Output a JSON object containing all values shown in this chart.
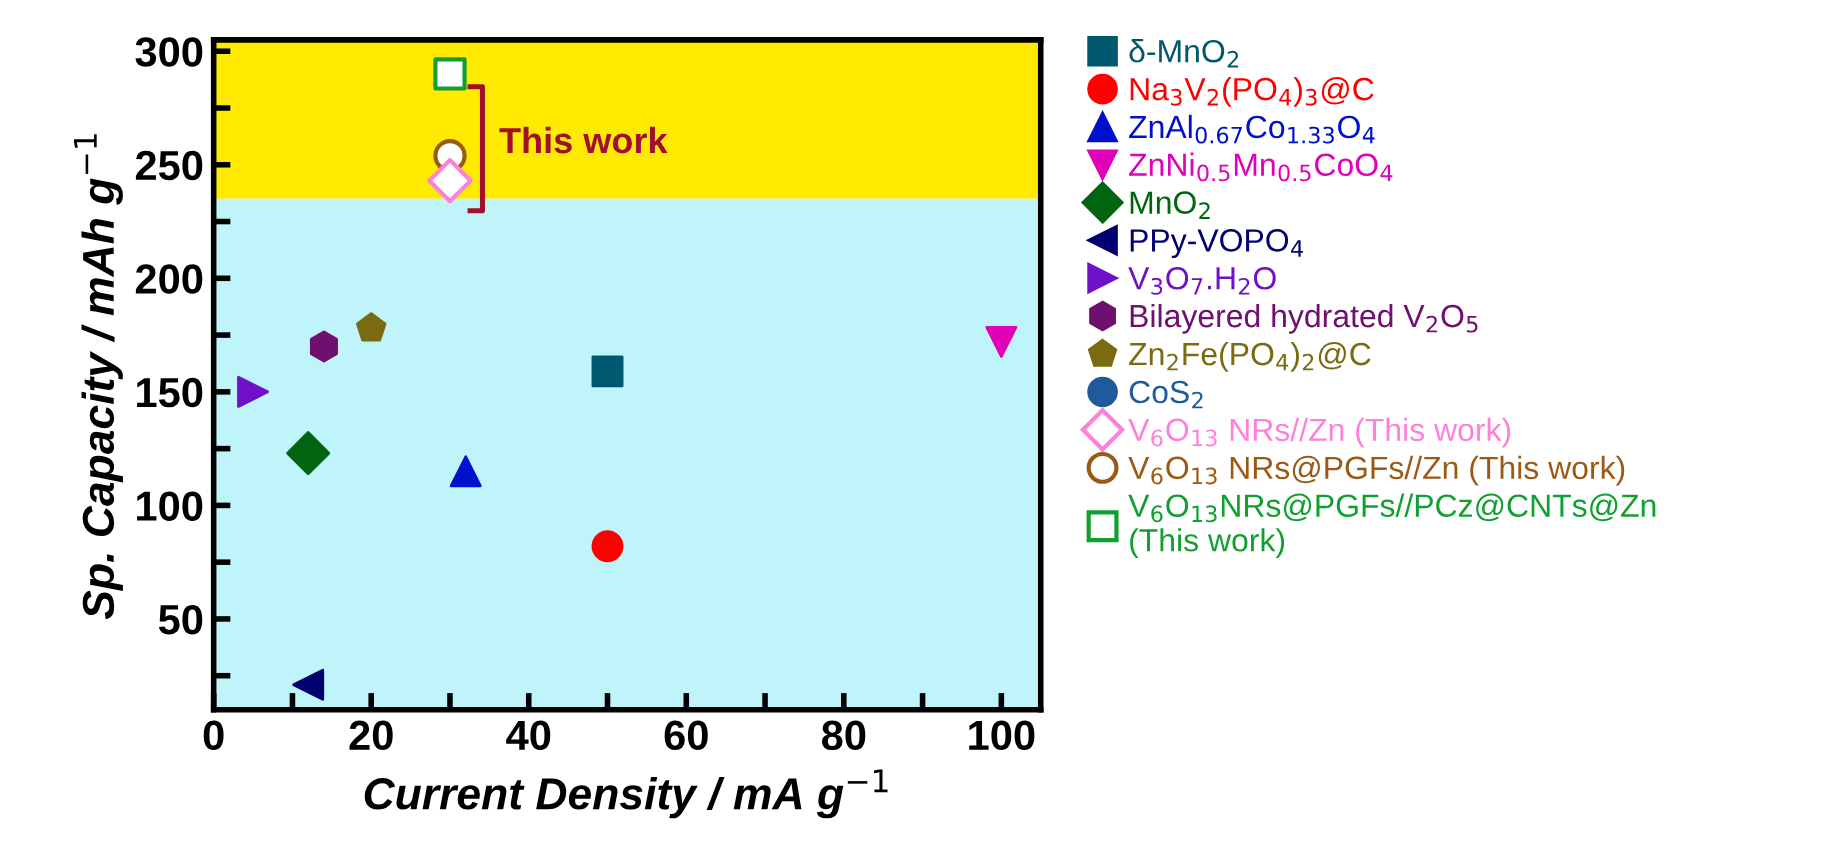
{
  "chart_data": {
    "type": "scatter",
    "xlabel": "Current Density / mA g$^{−1}$",
    "ylabel": "Sp. Capacity / mAh g$^{−1}$",
    "xlim": [
      0,
      105
    ],
    "ylim": [
      10,
      305
    ],
    "xticks": [
      0,
      {
        "value": 10,
        "label": null
      },
      20,
      {
        "value": 30,
        "label": null
      },
      40,
      {
        "value": 50,
        "label": null
      },
      60,
      {
        "value": 70,
        "label": null
      },
      80,
      {
        "value": 90,
        "label": null
      },
      100
    ],
    "yticks": [
      {
        "value": 25,
        "label": null
      },
      50,
      {
        "value": 75,
        "label": null
      },
      100,
      {
        "value": 125,
        "label": null
      },
      150,
      {
        "value": 175,
        "label": null
      },
      200,
      {
        "value": 225,
        "label": null
      },
      250,
      {
        "value": 275,
        "label": null
      },
      300
    ],
    "grid": false,
    "legend": "right",
    "bands": [
      {
        "axis": "y",
        "from": 235,
        "to": 305,
        "color": "#ffea00"
      },
      {
        "axis": "y",
        "from": 10,
        "to": 235,
        "color": "#c0f4fb"
      }
    ],
    "annotations": [
      "This work"
    ],
    "series": [
      {
        "name": "δ-MnO$_{2}$",
        "color": "#00586e",
        "marker": "square",
        "x": [
          50
        ],
        "values": [
          159
        ]
      },
      {
        "name": "Na$_{3}$V$_{2}$(PO$_{4}$)$_{3}$@C",
        "color": "#ff0000",
        "marker": "circle",
        "x": [
          50
        ],
        "values": [
          82
        ]
      },
      {
        "name": "ZnAl$_{0.67}$Co$_{1.33}$O$_{4}$",
        "color": "#0010cc",
        "marker": "triangle",
        "x": [
          32
        ],
        "values": [
          115
        ]
      },
      {
        "name": "ZnNi$_{0.5}$Mn$_{0.5}$CoO$_{4}$",
        "color": "#e000b8",
        "marker": "triangle-down",
        "x": [
          100
        ],
        "values": [
          172
        ]
      },
      {
        "name": "MnO$_{2}$",
        "color": "#006410",
        "marker": "diamond",
        "x": [
          12
        ],
        "values": [
          123
        ]
      },
      {
        "name": "PPy-VOPO$_{4}$",
        "color": "#000070",
        "marker": "triangle-left",
        "x": [
          12
        ],
        "values": [
          21
        ]
      },
      {
        "name": "V$_{3}$O$_{7}$.H$_{2}$O",
        "color": "#7010c8",
        "marker": "triangle-right",
        "x": [
          5
        ],
        "values": [
          150
        ]
      },
      {
        "name": "Bilayered hydrated V$_{2}$O$_{5}$",
        "color": "#70106e",
        "x": [
          14
        ],
        "values": [
          170
        ]
      },
      {
        "name": "Zn$_{2}$Fe(PO$_{4}$)$_{2}$@C",
        "color": "#7a6a10",
        "x": [
          20
        ],
        "values": [
          178
        ]
      },
      {
        "name": "CoS$_{2}$",
        "color": "#1e5a9c",
        "marker": "circle",
        "x": [
          null
        ],
        "values": [
          null
        ]
      },
      {
        "name": "V$_{6}$O$_{13}$ NRs//Zn (This work)",
        "color": "#ff80d8",
        "marker": "diamond",
        "x": [
          30
        ],
        "values": [
          243
        ]
      },
      {
        "name": "V$_{6}$O$_{13}$ NRs@PGFs//Zn (This work)",
        "color": "#9a5a14",
        "marker": "circle",
        "x": [
          30
        ],
        "values": [
          254
        ]
      },
      {
        "name": "V$_{6}$O$_{13}$NRs@PGFs//PCz@CNTs@Zn\n(This work)",
        "color": "#10a030",
        "marker": "square",
        "x": [
          30
        ],
        "values": [
          290
        ]
      }
    ]
  }
}
